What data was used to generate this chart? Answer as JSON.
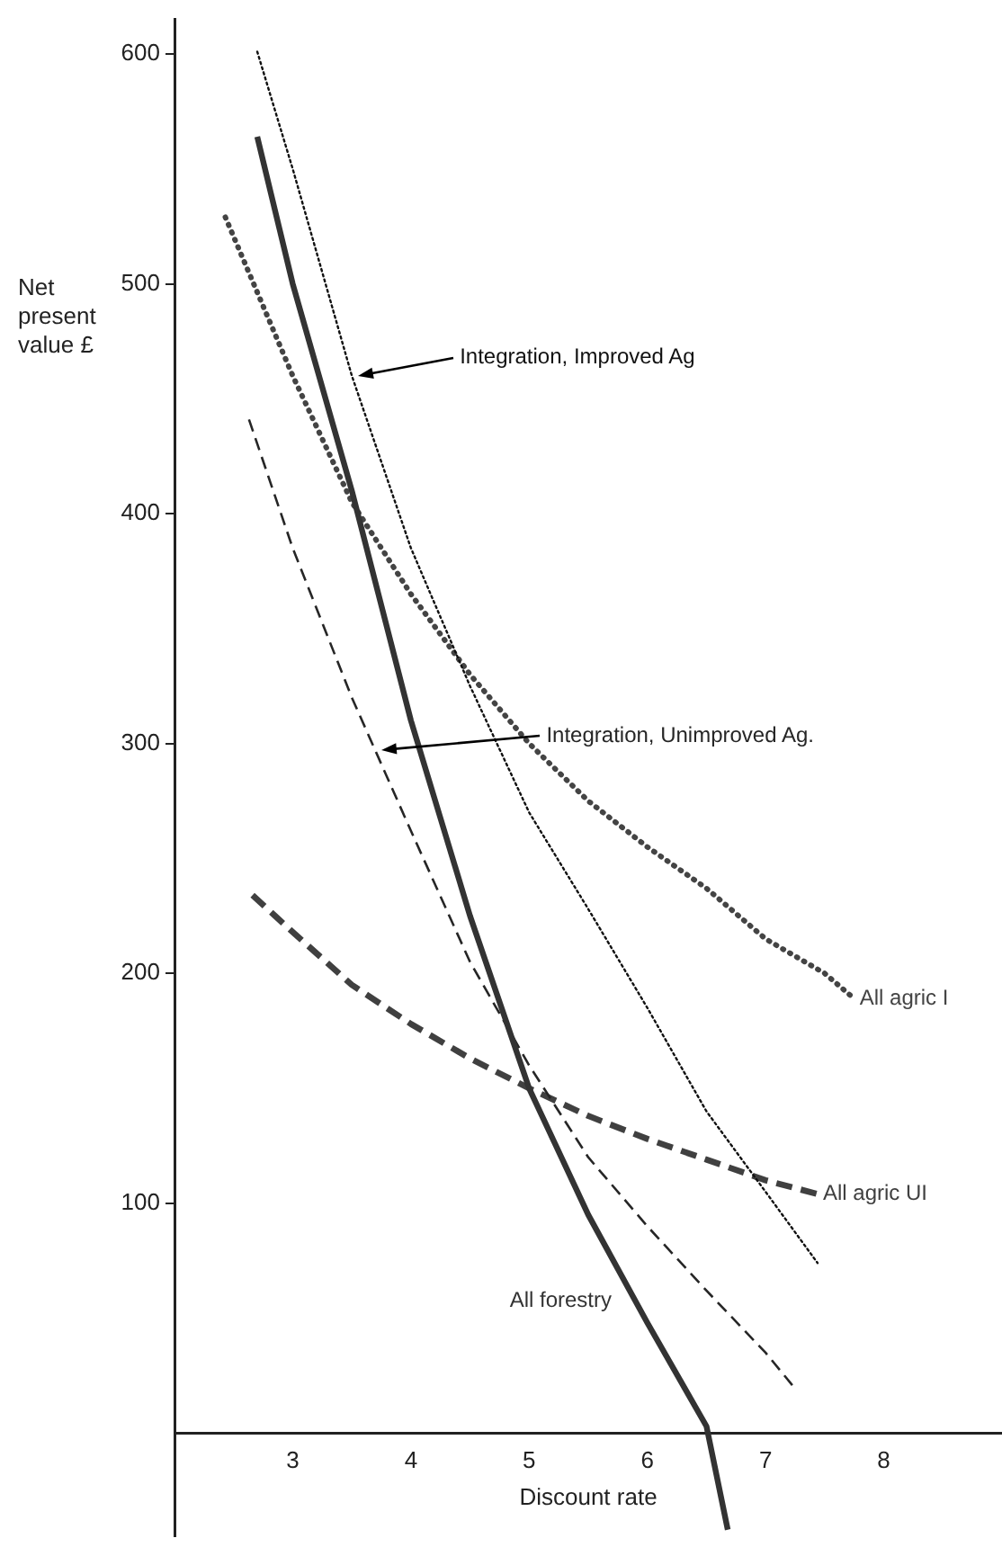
{
  "chart_data": {
    "type": "line",
    "xlabel": "Discount rate",
    "ylabel": "Net present value £",
    "xlim": [
      2,
      9
    ],
    "xticks": [
      3,
      4,
      5,
      6,
      7,
      8
    ],
    "ylim": [
      -45,
      615
    ],
    "yticks": [
      100,
      200,
      300,
      400,
      500,
      600
    ],
    "grid": false,
    "legend": false,
    "marker": "none",
    "series": [
      {
        "name": "Integration, Improved Ag",
        "color": "#111111",
        "line_style": "dotted",
        "x": [
          2.7,
          3.0,
          3.5,
          4.0,
          4.5,
          5.0,
          5.5,
          6.0,
          6.5,
          7.0,
          7.44
        ],
        "values": [
          601,
          550,
          460,
          385,
          325,
          270,
          228,
          185,
          140,
          105,
          74
        ]
      },
      {
        "name": "All forestry",
        "color": "#333333",
        "line_style": "solid",
        "x": [
          2.7,
          3.0,
          3.5,
          4.0,
          4.5,
          5.0,
          5.5,
          6.0,
          6.5,
          6.68
        ],
        "values": [
          564,
          500,
          410,
          310,
          225,
          150,
          95,
          48,
          3,
          -42
        ]
      },
      {
        "name": "All agric I",
        "color": "#444444",
        "line_style": "dotted",
        "x": [
          2.43,
          3.0,
          3.5,
          4.0,
          4.5,
          5.0,
          5.5,
          6.0,
          6.5,
          7.0,
          7.5,
          7.75
        ],
        "values": [
          529,
          460,
          405,
          365,
          330,
          300,
          275,
          255,
          237,
          215,
          200,
          189
        ]
      },
      {
        "name": "Integration, Unimproved Ag.",
        "color": "#262626",
        "line_style": "dashed",
        "x": [
          2.63,
          3.0,
          3.5,
          4.0,
          4.5,
          5.0,
          5.5,
          6.0,
          6.5,
          7.0,
          7.24
        ],
        "values": [
          441,
          385,
          320,
          262,
          205,
          160,
          120,
          90,
          62,
          35,
          20
        ]
      },
      {
        "name": "All agric UI",
        "color": "#404040",
        "line_style": "dashed",
        "x": [
          2.66,
          3.0,
          3.5,
          4.0,
          4.5,
          5.0,
          5.5,
          6.0,
          6.5,
          7.0,
          7.44
        ],
        "values": [
          234,
          218,
          195,
          178,
          163,
          150,
          138,
          128,
          119,
          110,
          104
        ]
      }
    ]
  }
}
